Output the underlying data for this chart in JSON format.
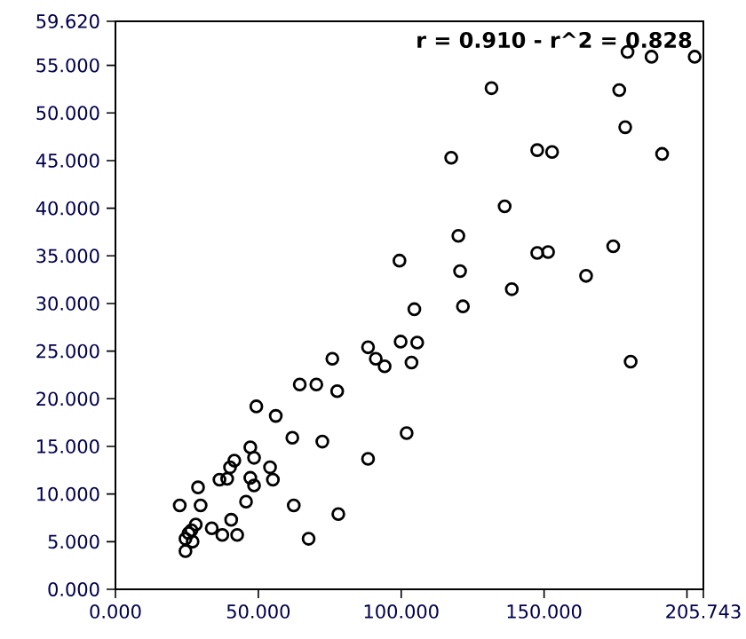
{
  "chart_data": {
    "type": "scatter",
    "annotations": [
      "r = 0.910 - r^2 = 0.828"
    ],
    "x": [
      179.2,
      187.6,
      202.7,
      131.6,
      176.3,
      178.4,
      117.5,
      147.6,
      152.8,
      191.3,
      136.2,
      120.0,
      99.4,
      147.6,
      151.4,
      174.2,
      120.6,
      164.7,
      138.7,
      104.6,
      121.6,
      88.4,
      91.1,
      94.2,
      99.8,
      105.6,
      103.6,
      180.3,
      101.9,
      88.4,
      75.9,
      64.5,
      70.3,
      77.6,
      49.3,
      56.1,
      61.9,
      72.4,
      47.2,
      48.5,
      41.6,
      40.1,
      54.1,
      47.2,
      36.4,
      39.1,
      55.1,
      48.5,
      28.9,
      22.5,
      29.8,
      45.7,
      62.4,
      78.0,
      40.5,
      28.1,
      33.7,
      26.6,
      25.6,
      37.4,
      42.6,
      24.5,
      27.0,
      67.6,
      24.5
    ],
    "values": [
      56.4,
      55.9,
      55.9,
      52.6,
      52.4,
      48.5,
      45.3,
      46.1,
      45.9,
      45.7,
      40.2,
      37.1,
      34.5,
      35.3,
      35.4,
      36.0,
      33.4,
      32.9,
      31.5,
      29.4,
      29.7,
      25.4,
      24.2,
      23.4,
      26.0,
      25.9,
      23.8,
      23.9,
      16.4,
      13.7,
      24.2,
      21.5,
      21.5,
      20.8,
      19.2,
      18.2,
      15.9,
      15.5,
      14.9,
      13.8,
      13.5,
      12.8,
      12.8,
      11.7,
      11.5,
      11.6,
      11.5,
      10.9,
      10.7,
      8.8,
      8.8,
      9.2,
      8.8,
      7.9,
      7.3,
      6.8,
      6.4,
      6.2,
      5.9,
      5.7,
      5.7,
      5.3,
      5.0,
      5.3,
      4.0
    ],
    "color": "#000000",
    "marker": "circle",
    "xlim": [
      0,
      205.743
    ],
    "ylim": [
      0,
      59.62
    ],
    "xticks": [
      {
        "value": 0,
        "label": "0.000"
      },
      {
        "value": 50,
        "label": "50.000"
      },
      {
        "value": 100,
        "label": "100.000"
      },
      {
        "value": 150,
        "label": "150.000"
      },
      {
        "value": 200,
        "label": null
      },
      {
        "value": 205.743,
        "label": "205.743"
      }
    ],
    "yticks": [
      {
        "value": 0,
        "label": "0.000"
      },
      {
        "value": 5,
        "label": "5.000"
      },
      {
        "value": 10,
        "label": "10.000"
      },
      {
        "value": 15,
        "label": "15.000"
      },
      {
        "value": 20,
        "label": "20.000"
      },
      {
        "value": 25,
        "label": "25.000"
      },
      {
        "value": 30,
        "label": "30.000"
      },
      {
        "value": 35,
        "label": "35.000"
      },
      {
        "value": 40,
        "label": "40.000"
      },
      {
        "value": 45,
        "label": "45.000"
      },
      {
        "value": 50,
        "label": "50.000"
      },
      {
        "value": 55,
        "label": "55.000"
      },
      {
        "value": 59.62,
        "label": "59.620"
      }
    ]
  }
}
